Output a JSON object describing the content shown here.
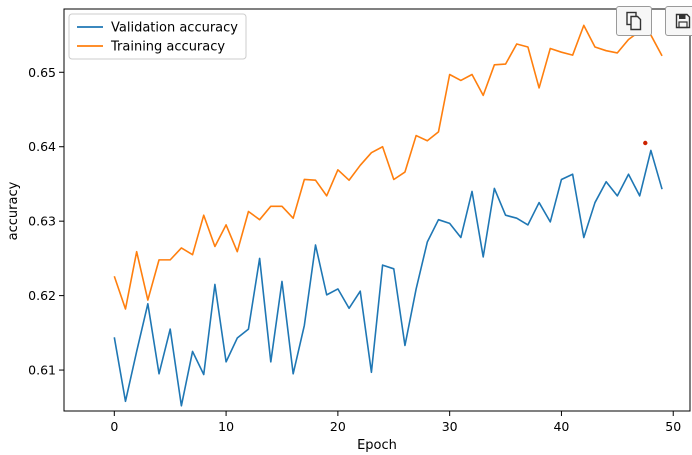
{
  "chart_data": {
    "type": "line",
    "xlabel": "Epoch",
    "ylabel": "accuracy",
    "xlim": [
      -4.5,
      51.5
    ],
    "ylim": [
      0.6045,
      0.6585
    ],
    "xticks": [
      0,
      10,
      20,
      30,
      40,
      50
    ],
    "xtick_labels": [
      "0",
      "10",
      "20",
      "30",
      "40",
      "50"
    ],
    "yticks": [
      0.61,
      0.62,
      0.63,
      0.64,
      0.65
    ],
    "ytick_labels": [
      "0.61",
      "0.62",
      "0.63",
      "0.64",
      "0.65"
    ],
    "grid": false,
    "legend": "top-left",
    "x": [
      0,
      1,
      2,
      3,
      4,
      5,
      6,
      7,
      8,
      9,
      10,
      11,
      12,
      13,
      14,
      15,
      16,
      17,
      18,
      19,
      20,
      21,
      22,
      23,
      24,
      25,
      26,
      27,
      28,
      29,
      30,
      31,
      32,
      33,
      34,
      35,
      36,
      37,
      38,
      39,
      40,
      41,
      42,
      43,
      44,
      45,
      46,
      47,
      48,
      49
    ],
    "series": [
      {
        "name": "Validation accuracy",
        "color": "#1f77b4",
        "values": [
          0.6144,
          0.6058,
          0.6125,
          0.6189,
          0.6095,
          0.6155,
          0.6052,
          0.6125,
          0.6094,
          0.6215,
          0.6111,
          0.6143,
          0.6155,
          0.625,
          0.6111,
          0.6219,
          0.6095,
          0.616,
          0.6268,
          0.6201,
          0.6209,
          0.6183,
          0.6206,
          0.6097,
          0.6241,
          0.6236,
          0.6133,
          0.6209,
          0.6272,
          0.6302,
          0.6297,
          0.6278,
          0.634,
          0.6252,
          0.6344,
          0.6308,
          0.6304,
          0.6295,
          0.6325,
          0.6299,
          0.6356,
          0.6363,
          0.6278,
          0.6325,
          0.6353,
          0.6334,
          0.6363,
          0.6334,
          0.6395,
          0.6343
        ]
      },
      {
        "name": "Training accuracy",
        "color": "#ff7f0e",
        "values": [
          0.6226,
          0.6182,
          0.6259,
          0.6194,
          0.6248,
          0.6248,
          0.6264,
          0.6255,
          0.6308,
          0.6266,
          0.6295,
          0.6259,
          0.6313,
          0.6302,
          0.632,
          0.632,
          0.6304,
          0.6356,
          0.6355,
          0.6334,
          0.6369,
          0.6355,
          0.6375,
          0.6392,
          0.64,
          0.6356,
          0.6366,
          0.6415,
          0.6408,
          0.642,
          0.6497,
          0.6489,
          0.6497,
          0.6469,
          0.651,
          0.6511,
          0.6538,
          0.6534,
          0.6479,
          0.6532,
          0.6527,
          0.6523,
          0.6563,
          0.6534,
          0.6529,
          0.6526,
          0.6544,
          0.6555,
          0.655,
          0.6522
        ]
      }
    ]
  },
  "annotations": {
    "red_dot": {
      "x": 47.5,
      "y": 0.6405,
      "color": "#cc2200"
    }
  },
  "toolbar": {
    "copy_icon": "copy-icon",
    "save_icon": "save-icon"
  }
}
